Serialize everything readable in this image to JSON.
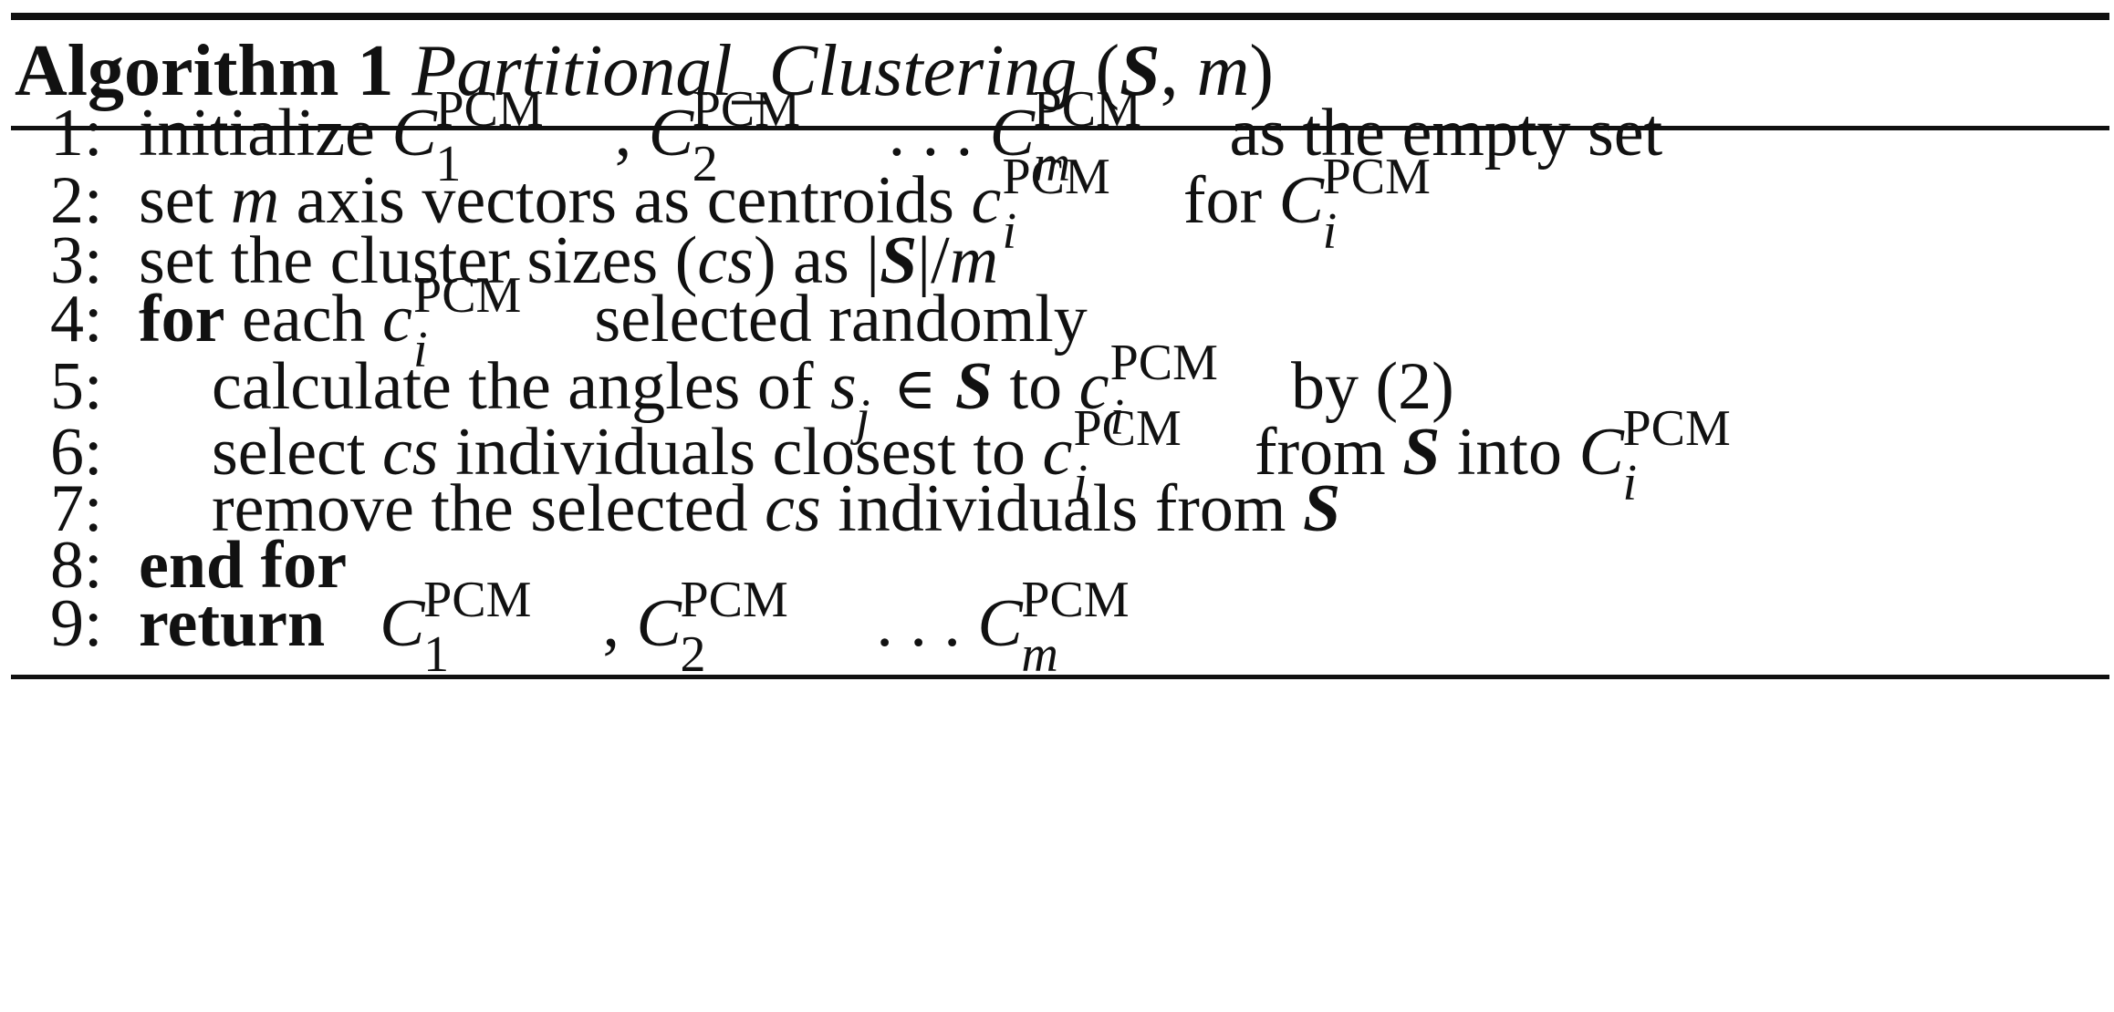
{
  "caption": {
    "label": "Algorithm 1",
    "name": "Partitional_Clustering",
    "params_open": "(",
    "param_s": "S",
    "param_sep": ", ",
    "param_m": "m",
    "params_close": ")"
  },
  "sup": "PCM",
  "lines": [
    {
      "num": "1:",
      "t1": "initialize ",
      "sub1": "1",
      "sub2": "2",
      "subm": "m",
      "sep": ", ",
      "dots": " . . . ",
      "t2": " as the empty set"
    },
    {
      "num": "2:",
      "t1": "set ",
      "m": "m",
      "t2": " axis vectors as centroids ",
      "c": "c",
      "i": "i",
      "t3": " for ",
      "C": "C",
      "i2": "i"
    },
    {
      "num": "3:",
      "t1": "set the cluster sizes (",
      "cs": "cs",
      "t2": ") as |",
      "S": "S",
      "t3": "|/",
      "m": "m"
    },
    {
      "num": "4:",
      "kw": "for",
      "t1": " each ",
      "c": "c",
      "i": "i",
      "t2": " selected randomly"
    },
    {
      "num": "5:",
      "t1": "calculate the angles of ",
      "s": "s",
      "j": "j",
      "in": " ∈ ",
      "S": "S",
      "t2": " to ",
      "c": "c",
      "i": "i",
      "t3": " by (2)"
    },
    {
      "num": "6:",
      "t1": "select ",
      "cs": "cs",
      "t2": " individuals closest to ",
      "c": "c",
      "i": "i",
      "t3": " from ",
      "S": "S",
      "t4": " into ",
      "C": "C",
      "i2": "i"
    },
    {
      "num": "7:",
      "t1": "remove the selected ",
      "cs": "cs",
      "t2": " individuals from ",
      "S": "S"
    },
    {
      "num": "8:",
      "kw": "end for"
    },
    {
      "num": "9:",
      "kw": "return",
      "C": "C",
      "sub1": "1",
      "sub2": "2",
      "subm": "m",
      "sep": ", ",
      "dots": " . . . "
    }
  ]
}
